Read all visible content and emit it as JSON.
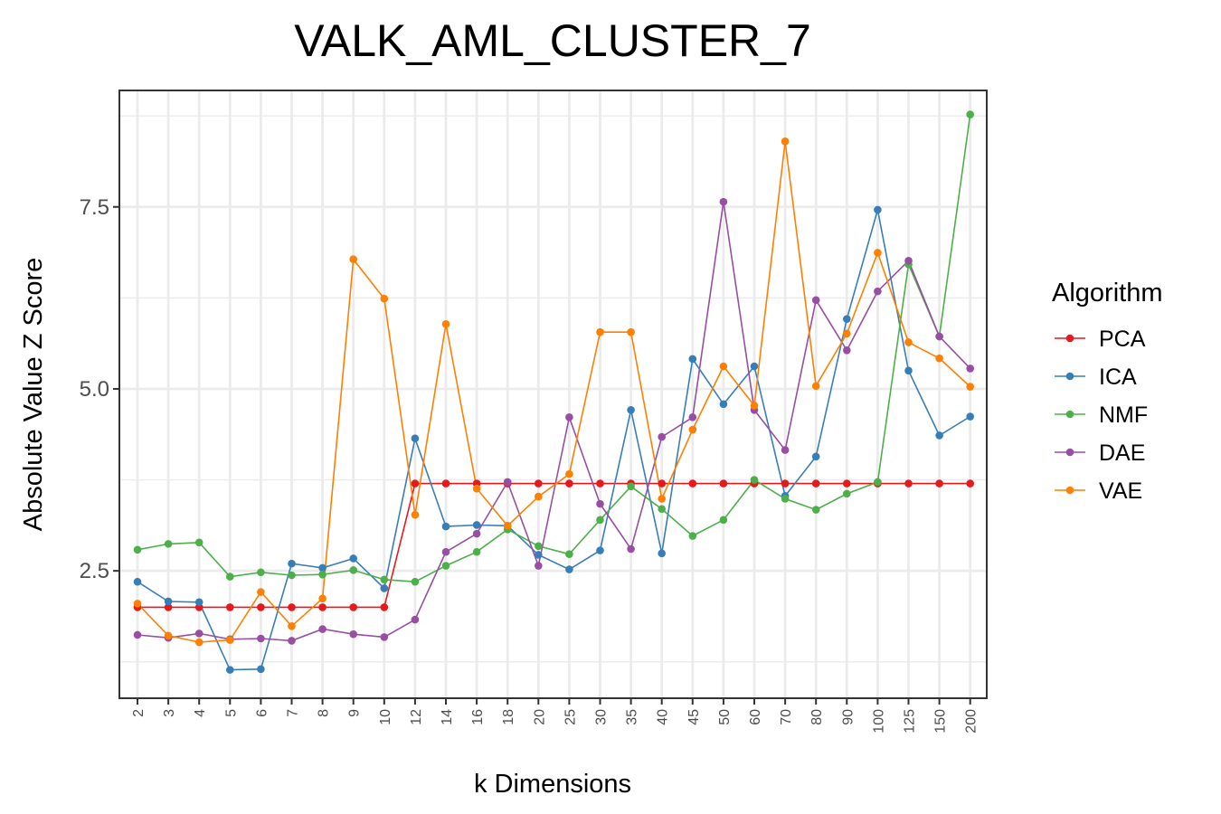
{
  "chart_data": {
    "type": "line",
    "title": "VALK_AML_CLUSTER_7",
    "xlabel": "k Dimensions",
    "ylabel": "Absolute Value Z Score",
    "categories": [
      "2",
      "3",
      "4",
      "5",
      "6",
      "7",
      "8",
      "9",
      "10",
      "12",
      "14",
      "16",
      "18",
      "20",
      "25",
      "30",
      "35",
      "40",
      "45",
      "50",
      "60",
      "70",
      "80",
      "90",
      "100",
      "125",
      "150",
      "200"
    ],
    "ylim": [
      0.75,
      9.1
    ],
    "yticks": [
      2.5,
      5.0,
      7.5
    ],
    "ytick_labels": [
      "2.5",
      "5.0",
      "7.5"
    ],
    "grid": true,
    "legend": {
      "title": "Algorithm",
      "position": "right"
    },
    "series": [
      {
        "name": "PCA",
        "color": "#e41a1c",
        "values": [
          2.0,
          2.0,
          2.0,
          2.0,
          2.0,
          2.0,
          2.0,
          2.0,
          2.0,
          3.7,
          3.7,
          3.7,
          3.7,
          3.7,
          3.7,
          3.7,
          3.7,
          3.7,
          3.7,
          3.7,
          3.7,
          3.7,
          3.7,
          3.7,
          3.7,
          3.7,
          3.7,
          3.7
        ]
      },
      {
        "name": "ICA",
        "color": "#377eb8",
        "values": [
          2.35,
          2.08,
          2.07,
          1.14,
          1.15,
          2.6,
          2.54,
          2.67,
          2.26,
          4.32,
          3.11,
          3.13,
          3.12,
          2.72,
          2.52,
          2.78,
          4.71,
          2.74,
          5.41,
          4.79,
          5.31,
          3.53,
          4.07,
          5.96,
          7.46,
          5.25,
          4.36,
          4.62
        ]
      },
      {
        "name": "NMF",
        "color": "#4daf4a",
        "values": [
          2.79,
          2.87,
          2.89,
          2.42,
          2.48,
          2.44,
          2.45,
          2.51,
          2.38,
          2.35,
          2.57,
          2.76,
          3.07,
          2.84,
          2.73,
          3.2,
          3.66,
          3.35,
          2.98,
          3.2,
          3.75,
          3.49,
          3.34,
          3.56,
          3.72,
          6.71,
          5.72,
          8.77
        ]
      },
      {
        "name": "DAE",
        "color": "#984ea3",
        "values": [
          1.62,
          1.58,
          1.64,
          1.56,
          1.57,
          1.54,
          1.7,
          1.63,
          1.59,
          1.83,
          2.76,
          3.01,
          3.72,
          2.57,
          4.61,
          3.42,
          2.8,
          4.34,
          4.61,
          7.57,
          4.71,
          4.16,
          6.22,
          5.53,
          6.34,
          6.76,
          5.72,
          5.28
        ]
      },
      {
        "name": "VAE",
        "color": "#ff7f00",
        "values": [
          2.05,
          1.61,
          1.52,
          1.55,
          2.21,
          1.74,
          2.12,
          6.78,
          6.24,
          3.27,
          5.89,
          3.63,
          3.12,
          3.52,
          3.83,
          5.78,
          5.78,
          3.49,
          4.44,
          5.31,
          4.77,
          8.4,
          5.04,
          5.76,
          6.87,
          5.64,
          5.42,
          5.03
        ]
      }
    ]
  }
}
